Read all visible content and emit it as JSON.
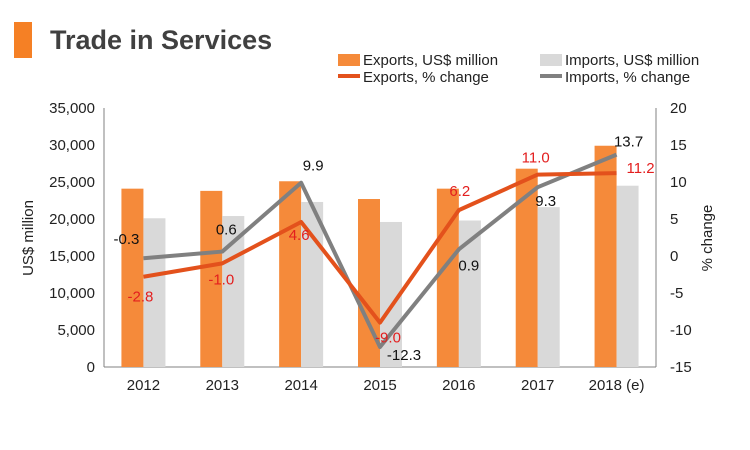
{
  "title": "Trade in Services",
  "colors": {
    "title_accent": "#f58025",
    "exports_bar": "#f58a3a",
    "imports_bar": "#d9d9d9",
    "exports_line": "#e3511c",
    "imports_line": "#808080",
    "exports_label": "#e31e1e",
    "imports_label": "#111111"
  },
  "chart_data": {
    "type": "bar",
    "categories": [
      "2012",
      "2013",
      "2014",
      "2015",
      "2016",
      "2017",
      "2018 (e)"
    ],
    "series": [
      {
        "name": "Exports, US$ million",
        "kind": "bar",
        "axis": "left",
        "values": [
          24100,
          23800,
          25100,
          22700,
          24100,
          26800,
          29900
        ]
      },
      {
        "name": "Imports, US$ million",
        "kind": "bar",
        "axis": "left",
        "values": [
          20100,
          20400,
          22300,
          19600,
          19800,
          21600,
          24500
        ]
      },
      {
        "name": "Exports, % change",
        "kind": "line",
        "axis": "right",
        "values": [
          -2.8,
          -1.0,
          4.6,
          -9.0,
          6.2,
          11.0,
          11.2
        ],
        "labels": [
          "-2.8",
          "-1.0",
          "4.6",
          "-9.0",
          "6.2",
          "11.0",
          "11.2"
        ]
      },
      {
        "name": "Imports, % change",
        "kind": "line",
        "axis": "right",
        "values": [
          -0.3,
          0.6,
          9.9,
          -12.3,
          0.9,
          9.3,
          13.7
        ],
        "labels": [
          "-0.3",
          "0.6",
          "9.9",
          "-12.3",
          "0.9",
          "9.3",
          "13.7"
        ]
      }
    ],
    "ylabel": "US$ million",
    "y2label": "% change",
    "ylim": [
      0,
      35000
    ],
    "yticks": [
      "0",
      "5,000",
      "10,000",
      "15,000",
      "20,000",
      "25,000",
      "30,000",
      "35,000"
    ],
    "y2lim": [
      -15,
      20
    ],
    "y2ticks": [
      "-15",
      "-10",
      "-5",
      "0",
      "5",
      "10",
      "15",
      "20"
    ],
    "legend_position": "top-right",
    "grid": false
  }
}
